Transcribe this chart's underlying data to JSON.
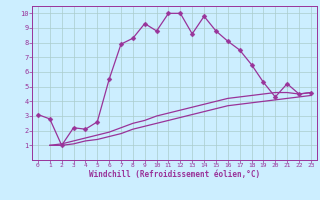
{
  "xlabel": "Windchill (Refroidissement éolien,°C)",
  "background_color": "#cceeff",
  "grid_color": "#aacccc",
  "line_color": "#993399",
  "xlim": [
    -0.5,
    23.5
  ],
  "ylim": [
    0,
    10.5
  ],
  "xticks": [
    0,
    1,
    2,
    3,
    4,
    5,
    6,
    7,
    8,
    9,
    10,
    11,
    12,
    13,
    14,
    15,
    16,
    17,
    18,
    19,
    20,
    21,
    22,
    23
  ],
  "yticks": [
    1,
    2,
    3,
    4,
    5,
    6,
    7,
    8,
    9,
    10
  ],
  "series1_x": [
    0,
    1,
    2,
    3,
    4,
    5,
    6,
    7,
    8,
    9,
    10,
    11,
    12,
    13,
    14,
    15,
    16,
    17,
    18,
    19,
    20,
    21,
    22,
    23
  ],
  "series1_y": [
    3.1,
    2.8,
    1.0,
    2.2,
    2.1,
    2.6,
    5.5,
    7.9,
    8.3,
    9.3,
    8.8,
    10.0,
    10.0,
    8.6,
    9.8,
    8.8,
    8.1,
    7.5,
    6.5,
    5.3,
    4.3,
    5.2,
    4.5,
    4.6
  ],
  "series2_x": [
    1,
    2,
    3,
    4,
    5,
    6,
    7,
    8,
    9,
    10,
    11,
    12,
    13,
    14,
    15,
    16,
    17,
    18,
    19,
    20,
    21,
    22,
    23
  ],
  "series2_y": [
    1.0,
    1.1,
    1.3,
    1.5,
    1.7,
    1.9,
    2.2,
    2.5,
    2.7,
    3.0,
    3.2,
    3.4,
    3.6,
    3.8,
    4.0,
    4.2,
    4.3,
    4.4,
    4.5,
    4.6,
    4.6,
    4.5,
    4.6
  ],
  "series3_x": [
    1,
    2,
    3,
    4,
    5,
    6,
    7,
    8,
    9,
    10,
    11,
    12,
    13,
    14,
    15,
    16,
    17,
    18,
    19,
    20,
    21,
    22,
    23
  ],
  "series3_y": [
    1.0,
    1.0,
    1.1,
    1.3,
    1.4,
    1.6,
    1.8,
    2.1,
    2.3,
    2.5,
    2.7,
    2.9,
    3.1,
    3.3,
    3.5,
    3.7,
    3.8,
    3.9,
    4.0,
    4.1,
    4.2,
    4.3,
    4.4
  ]
}
